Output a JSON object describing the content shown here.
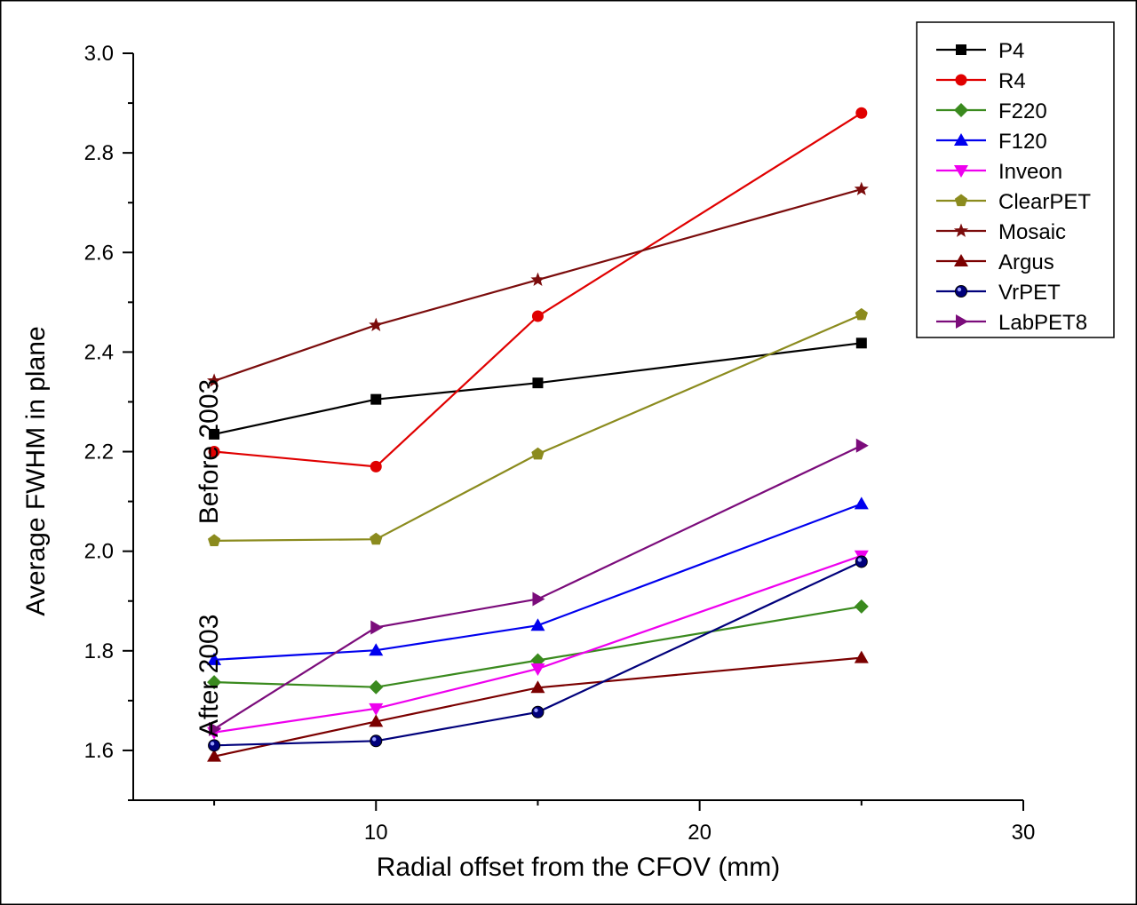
{
  "chart_data": {
    "type": "line",
    "title": "",
    "xlabel": "Radial offset from the CFOV (mm)",
    "ylabel": "Average FWHM in plane",
    "xlim": [
      2.5,
      30
    ],
    "ylim": [
      1.5,
      3.0
    ],
    "xticks": [
      10,
      20,
      30
    ],
    "yticks": [
      1.6,
      1.8,
      2.0,
      2.2,
      2.4,
      2.6,
      2.8,
      3.0
    ],
    "ytick_labels": [
      "1.6",
      "1.8",
      "2.0",
      "2.2",
      "2.4",
      "2.6",
      "2.8",
      "3.0"
    ],
    "legend_position": "top-right",
    "annotations": [
      {
        "text": "Before 2003",
        "x": 4.8,
        "y": 2.2,
        "rotation": -90
      },
      {
        "text": "After 2003",
        "x": 4.8,
        "y": 1.75,
        "rotation": -90
      }
    ],
    "series": [
      {
        "name": "P4",
        "color": "#000000",
        "marker": "square",
        "x": [
          5,
          10,
          15,
          25
        ],
        "y": [
          2.235,
          2.305,
          2.338,
          2.418
        ]
      },
      {
        "name": "R4",
        "color": "#e00000",
        "marker": "circle",
        "x": [
          5,
          10,
          15,
          25
        ],
        "y": [
          2.2,
          2.17,
          2.472,
          2.88
        ]
      },
      {
        "name": "F220",
        "color": "#3a8a1e",
        "marker": "diamond",
        "x": [
          5,
          10,
          15,
          25
        ],
        "y": [
          1.737,
          1.727,
          1.781,
          1.889
        ]
      },
      {
        "name": "F120",
        "color": "#0000ee",
        "marker": "triangle-up",
        "x": [
          5,
          10,
          15,
          25
        ],
        "y": [
          1.782,
          1.801,
          1.851,
          2.095
        ]
      },
      {
        "name": "Inveon",
        "color": "#ee00ee",
        "marker": "triangle-down",
        "x": [
          5,
          10,
          15,
          25
        ],
        "y": [
          1.636,
          1.684,
          1.764,
          1.991
        ]
      },
      {
        "name": "ClearPET",
        "color": "#8b8b1e",
        "marker": "pentagon",
        "x": [
          5,
          10,
          15,
          25
        ],
        "y": [
          2.021,
          2.024,
          2.195,
          2.475
        ]
      },
      {
        "name": "Mosaic",
        "color": "#7b0c0c",
        "marker": "star",
        "x": [
          5,
          10,
          15,
          25
        ],
        "y": [
          2.342,
          2.454,
          2.545,
          2.727
        ]
      },
      {
        "name": "Argus",
        "color": "#7b0000",
        "marker": "triangle-up",
        "x": [
          5,
          10,
          15,
          25
        ],
        "y": [
          1.588,
          1.658,
          1.726,
          1.786
        ]
      },
      {
        "name": "VrPET",
        "color": "#00007b",
        "marker": "sphere",
        "x": [
          5,
          10,
          15,
          25
        ],
        "y": [
          1.61,
          1.619,
          1.677,
          1.979
        ]
      },
      {
        "name": "LabPET8",
        "color": "#7b0c7b",
        "marker": "triangle-right",
        "x": [
          5,
          10,
          15,
          25
        ],
        "y": [
          1.643,
          1.847,
          1.904,
          2.212
        ]
      }
    ]
  }
}
